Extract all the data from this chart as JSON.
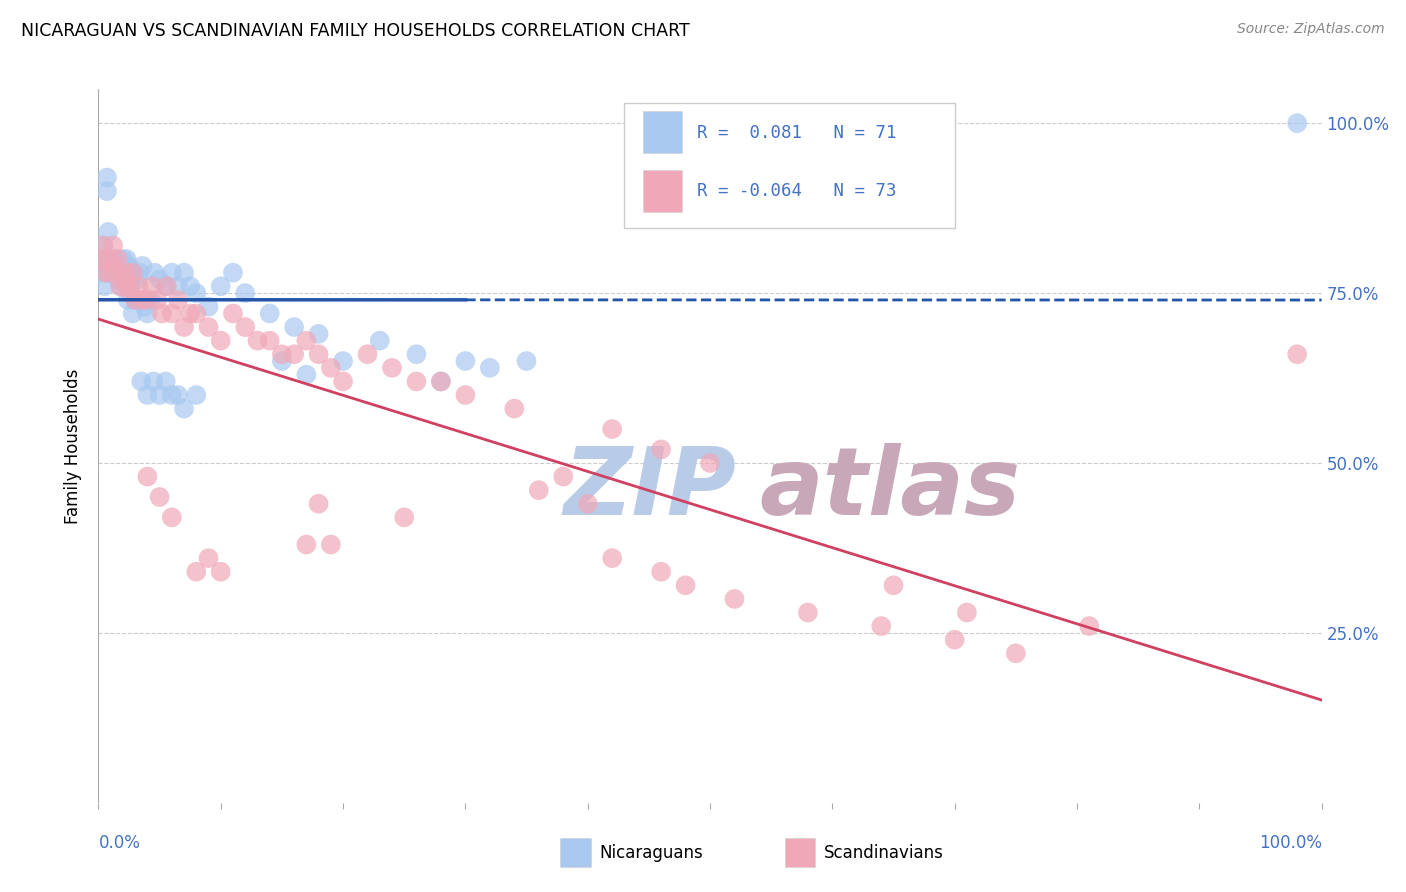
{
  "title": "NICARAGUAN VS SCANDINAVIAN FAMILY HOUSEHOLDS CORRELATION CHART",
  "source": "Source: ZipAtlas.com",
  "ylabel": "Family Households",
  "legend_label_blue": "Nicaraguans",
  "legend_label_pink": "Scandinavians",
  "r_blue": 0.081,
  "n_blue": 71,
  "r_pink": -0.064,
  "n_pink": 73,
  "blue_color": "#a8c8f0",
  "pink_color": "#f0a8b8",
  "blue_line_color": "#2255aa",
  "pink_line_color": "#d04060",
  "watermark_zip_color": "#b8cce8",
  "watermark_atlas_color": "#c8a8b8",
  "background_color": "#ffffff",
  "blue_scatter_x": [
    0.001,
    0.002,
    0.003,
    0.004,
    0.005,
    0.006,
    0.007,
    0.007,
    0.008,
    0.009,
    0.01,
    0.011,
    0.012,
    0.013,
    0.014,
    0.015,
    0.016,
    0.017,
    0.018,
    0.019,
    0.02,
    0.021,
    0.022,
    0.023,
    0.024,
    0.025,
    0.026,
    0.027,
    0.028,
    0.029,
    0.03,
    0.032,
    0.034,
    0.036,
    0.038,
    0.04,
    0.043,
    0.046,
    0.05,
    0.055,
    0.06,
    0.065,
    0.07,
    0.075,
    0.08,
    0.09,
    0.1,
    0.11,
    0.12,
    0.14,
    0.16,
    0.18,
    0.2,
    0.23,
    0.26,
    0.3,
    0.35,
    0.28,
    0.32,
    0.15,
    0.17,
    0.05,
    0.06,
    0.07,
    0.08,
    0.035,
    0.04,
    0.045,
    0.055,
    0.065,
    0.98
  ],
  "blue_scatter_y": [
    0.78,
    0.8,
    0.79,
    0.82,
    0.76,
    0.78,
    0.92,
    0.9,
    0.84,
    0.78,
    0.8,
    0.79,
    0.78,
    0.8,
    0.79,
    0.78,
    0.77,
    0.79,
    0.76,
    0.78,
    0.8,
    0.77,
    0.79,
    0.8,
    0.74,
    0.79,
    0.76,
    0.78,
    0.72,
    0.78,
    0.74,
    0.77,
    0.78,
    0.79,
    0.73,
    0.72,
    0.74,
    0.78,
    0.77,
    0.76,
    0.78,
    0.76,
    0.78,
    0.76,
    0.75,
    0.73,
    0.76,
    0.78,
    0.75,
    0.72,
    0.7,
    0.69,
    0.65,
    0.68,
    0.66,
    0.65,
    0.65,
    0.62,
    0.64,
    0.65,
    0.63,
    0.6,
    0.6,
    0.58,
    0.6,
    0.62,
    0.6,
    0.62,
    0.62,
    0.6,
    1.0
  ],
  "pink_scatter_x": [
    0.002,
    0.004,
    0.006,
    0.008,
    0.01,
    0.012,
    0.014,
    0.016,
    0.018,
    0.02,
    0.022,
    0.024,
    0.026,
    0.028,
    0.03,
    0.033,
    0.036,
    0.04,
    0.044,
    0.048,
    0.052,
    0.056,
    0.06,
    0.065,
    0.07,
    0.075,
    0.08,
    0.09,
    0.1,
    0.11,
    0.12,
    0.13,
    0.14,
    0.15,
    0.16,
    0.17,
    0.18,
    0.19,
    0.2,
    0.22,
    0.24,
    0.26,
    0.28,
    0.3,
    0.25,
    0.34,
    0.18,
    0.42,
    0.46,
    0.5,
    0.38,
    0.36,
    0.4,
    0.17,
    0.19,
    0.42,
    0.46,
    0.48,
    0.52,
    0.58,
    0.64,
    0.7,
    0.75,
    0.65,
    0.71,
    0.81,
    0.08,
    0.09,
    0.1,
    0.05,
    0.06,
    0.04,
    0.98
  ],
  "pink_scatter_y": [
    0.8,
    0.82,
    0.78,
    0.8,
    0.78,
    0.82,
    0.79,
    0.8,
    0.76,
    0.77,
    0.78,
    0.76,
    0.75,
    0.78,
    0.74,
    0.76,
    0.74,
    0.74,
    0.76,
    0.74,
    0.72,
    0.76,
    0.72,
    0.74,
    0.7,
    0.72,
    0.72,
    0.7,
    0.68,
    0.72,
    0.7,
    0.68,
    0.68,
    0.66,
    0.66,
    0.68,
    0.66,
    0.64,
    0.62,
    0.66,
    0.64,
    0.62,
    0.62,
    0.6,
    0.42,
    0.58,
    0.44,
    0.55,
    0.52,
    0.5,
    0.48,
    0.46,
    0.44,
    0.38,
    0.38,
    0.36,
    0.34,
    0.32,
    0.3,
    0.28,
    0.26,
    0.24,
    0.22,
    0.32,
    0.28,
    0.26,
    0.34,
    0.36,
    0.34,
    0.45,
    0.42,
    0.48,
    0.66
  ]
}
